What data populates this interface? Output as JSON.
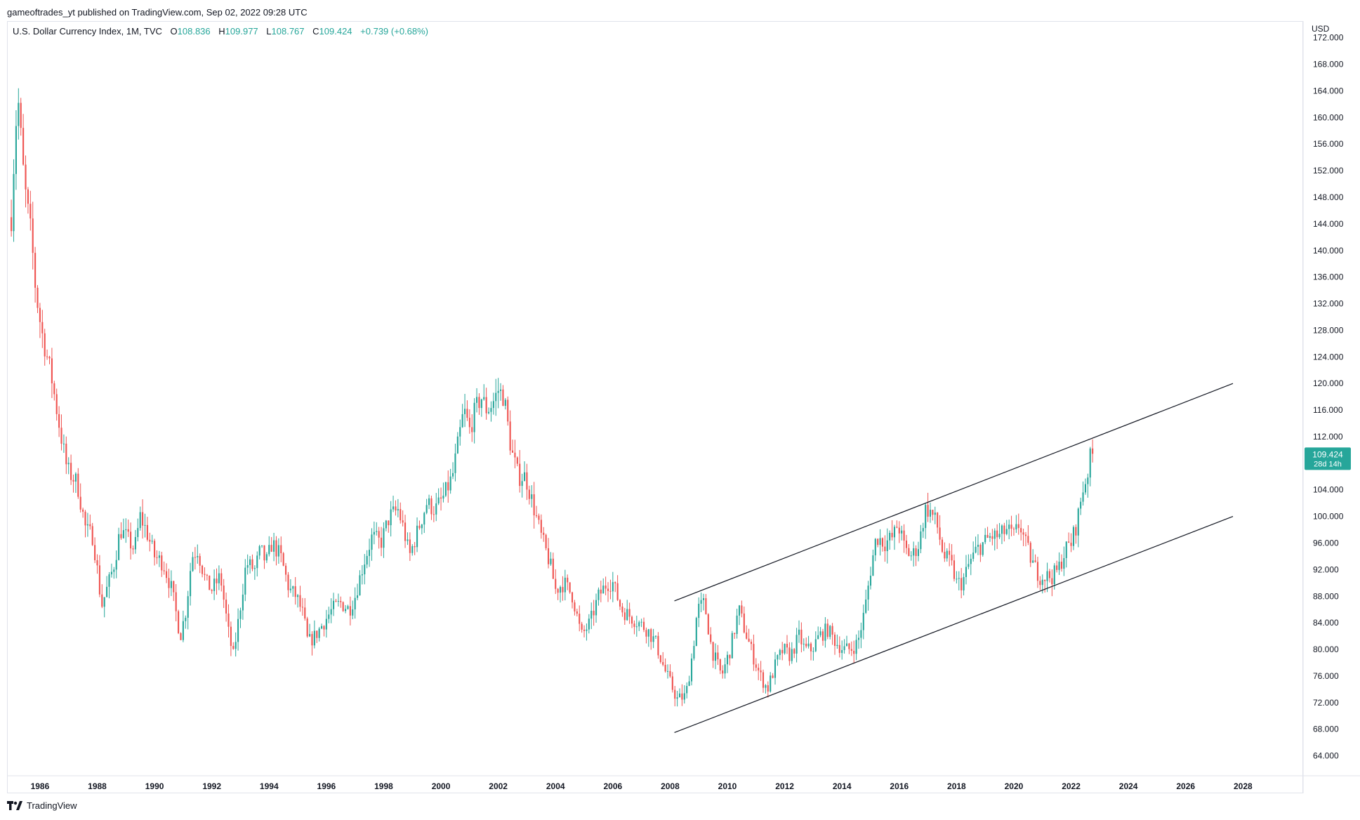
{
  "publisher": "gameoftrades_yt published on TradingView.com, Sep 02, 2022 09:28 UTC",
  "legend": {
    "symbol": "U.S. Dollar Currency Index, 1M, TVC",
    "o_label": "O",
    "o_value": "108.836",
    "h_label": "H",
    "h_value": "109.977",
    "l_label": "L",
    "l_value": "108.767",
    "c_label": "C",
    "c_value": "109.424",
    "change": "+0.739 (+0.68%)"
  },
  "footer": {
    "brand": "TradingView"
  },
  "colors": {
    "up": "#26a69a",
    "down": "#ef5350",
    "line": "#131722",
    "price_tag": "#26a69a"
  },
  "chart_data": {
    "type": "candlestick",
    "currency_label": "USD",
    "y_ticks": [
      "172.000",
      "168.000",
      "164.000",
      "160.000",
      "156.000",
      "152.000",
      "148.000",
      "144.000",
      "140.000",
      "136.000",
      "132.000",
      "128.000",
      "124.000",
      "120.000",
      "116.000",
      "112.000",
      "108.000",
      "104.000",
      "100.000",
      "96.000",
      "92.000",
      "88.000",
      "84.000",
      "80.000",
      "76.000",
      "72.000",
      "68.000",
      "64.000"
    ],
    "x_ticks": [
      "1986",
      "1988",
      "1990",
      "1992",
      "1994",
      "1996",
      "1998",
      "2000",
      "2002",
      "2004",
      "2006",
      "2008",
      "2010",
      "2012",
      "2014",
      "2016",
      "2018",
      "2020",
      "2022",
      "2024",
      "2026",
      "2028"
    ],
    "ylim": [
      61.0,
      174.5
    ],
    "xlim": [
      1984.85,
      2030.1
    ],
    "last_price": "109.424",
    "countdown": "28d 14h",
    "anchors": [
      [
        1985.0,
        145
      ],
      [
        1985.15,
        159
      ],
      [
        1985.25,
        162
      ],
      [
        1985.45,
        150
      ],
      [
        1985.7,
        142
      ],
      [
        1985.85,
        134
      ],
      [
        1986.05,
        128
      ],
      [
        1986.4,
        121
      ],
      [
        1986.7,
        113
      ],
      [
        1986.95,
        107
      ],
      [
        1987.3,
        105
      ],
      [
        1987.6,
        98
      ],
      [
        1987.85,
        97
      ],
      [
        1988.0,
        92
      ],
      [
        1988.15,
        86.5
      ],
      [
        1988.4,
        90
      ],
      [
        1988.6,
        93
      ],
      [
        1988.8,
        98
      ],
      [
        1989.0,
        97
      ],
      [
        1989.3,
        95
      ],
      [
        1989.5,
        100
      ],
      [
        1989.7,
        98
      ],
      [
        1990.0,
        94
      ],
      [
        1990.3,
        93
      ],
      [
        1990.6,
        89
      ],
      [
        1990.9,
        82
      ],
      [
        1991.1,
        86
      ],
      [
        1991.3,
        94
      ],
      [
        1991.5,
        95
      ],
      [
        1991.8,
        90
      ],
      [
        1992.0,
        89
      ],
      [
        1992.3,
        91
      ],
      [
        1992.6,
        82
      ],
      [
        1992.75,
        79
      ],
      [
        1992.95,
        85
      ],
      [
        1993.2,
        93
      ],
      [
        1993.5,
        92
      ],
      [
        1993.7,
        95
      ],
      [
        1993.9,
        93
      ],
      [
        1994.1,
        96
      ],
      [
        1994.4,
        94
      ],
      [
        1994.7,
        89
      ],
      [
        1994.95,
        88
      ],
      [
        1995.2,
        85
      ],
      [
        1995.35,
        81
      ],
      [
        1995.6,
        82
      ],
      [
        1995.9,
        84
      ],
      [
        1996.2,
        86
      ],
      [
        1996.5,
        87
      ],
      [
        1996.8,
        86
      ],
      [
        1997.0,
        88
      ],
      [
        1997.3,
        93
      ],
      [
        1997.6,
        97
      ],
      [
        1997.9,
        96
      ],
      [
        1998.2,
        100
      ],
      [
        1998.5,
        101
      ],
      [
        1998.7,
        98
      ],
      [
        1998.9,
        94
      ],
      [
        1999.2,
        98
      ],
      [
        1999.5,
        102
      ],
      [
        1999.8,
        101
      ],
      [
        2000.1,
        103
      ],
      [
        2000.4,
        106
      ],
      [
        2000.6,
        111
      ],
      [
        2000.8,
        116
      ],
      [
        2001.0,
        113
      ],
      [
        2001.2,
        116
      ],
      [
        2001.4,
        118
      ],
      [
        2001.6,
        116
      ],
      [
        2001.8,
        117
      ],
      [
        2002.0,
        119
      ],
      [
        2002.2,
        118
      ],
      [
        2002.45,
        110
      ],
      [
        2002.7,
        106
      ],
      [
        2002.95,
        106
      ],
      [
        2003.2,
        102
      ],
      [
        2003.5,
        97
      ],
      [
        2003.8,
        93
      ],
      [
        2004.0,
        89
      ],
      [
        2004.3,
        90
      ],
      [
        2004.6,
        88
      ],
      [
        2004.9,
        82
      ],
      [
        2005.2,
        84
      ],
      [
        2005.5,
        88
      ],
      [
        2005.8,
        90
      ],
      [
        2006.0,
        90
      ],
      [
        2006.3,
        86
      ],
      [
        2006.6,
        85
      ],
      [
        2006.9,
        84
      ],
      [
        2007.2,
        83
      ],
      [
        2007.5,
        81
      ],
      [
        2007.8,
        77
      ],
      [
        2008.0,
        75
      ],
      [
        2008.25,
        72.5
      ],
      [
        2008.55,
        73
      ],
      [
        2008.8,
        80
      ],
      [
        2008.95,
        86
      ],
      [
        2009.2,
        87
      ],
      [
        2009.45,
        80
      ],
      [
        2009.8,
        76
      ],
      [
        2010.1,
        80
      ],
      [
        2010.4,
        86
      ],
      [
        2010.6,
        83
      ],
      [
        2010.9,
        79
      ],
      [
        2011.15,
        76
      ],
      [
        2011.4,
        74
      ],
      [
        2011.7,
        78
      ],
      [
        2011.95,
        80
      ],
      [
        2012.2,
        79
      ],
      [
        2012.5,
        82
      ],
      [
        2012.7,
        80
      ],
      [
        2012.95,
        80
      ],
      [
        2013.2,
        82
      ],
      [
        2013.5,
        83
      ],
      [
        2013.8,
        81
      ],
      [
        2014.05,
        80
      ],
      [
        2014.3,
        80
      ],
      [
        2014.55,
        81
      ],
      [
        2014.8,
        86
      ],
      [
        2015.0,
        92
      ],
      [
        2015.2,
        97
      ],
      [
        2015.5,
        96
      ],
      [
        2015.8,
        97
      ],
      [
        2015.95,
        99
      ],
      [
        2016.2,
        95
      ],
      [
        2016.45,
        94
      ],
      [
        2016.7,
        96
      ],
      [
        2016.9,
        101
      ],
      [
        2017.05,
        101
      ],
      [
        2017.3,
        99
      ],
      [
        2017.55,
        94
      ],
      [
        2017.8,
        93
      ],
      [
        2018.0,
        90
      ],
      [
        2018.2,
        90
      ],
      [
        2018.45,
        93
      ],
      [
        2018.7,
        95
      ],
      [
        2018.95,
        96
      ],
      [
        2019.2,
        97
      ],
      [
        2019.5,
        97
      ],
      [
        2019.75,
        98
      ],
      [
        2020.0,
        97
      ],
      [
        2020.2,
        99
      ],
      [
        2020.4,
        96
      ],
      [
        2020.65,
        93
      ],
      [
        2020.9,
        91
      ],
      [
        2021.15,
        91
      ],
      [
        2021.35,
        91
      ],
      [
        2021.55,
        92
      ],
      [
        2021.8,
        95
      ],
      [
        2022.0,
        96
      ],
      [
        2022.2,
        99
      ],
      [
        2022.4,
        104
      ],
      [
        2022.55,
        106
      ],
      [
        2022.67,
        108.8
      ],
      [
        2022.75,
        109.4
      ]
    ],
    "channel": {
      "upper": {
        "x": [
          2008.15,
          2027.65
        ],
        "y": [
          87.3,
          120.0
        ]
      },
      "lower": {
        "x": [
          2008.15,
          2027.65
        ],
        "y": [
          67.5,
          100.0
        ]
      }
    }
  }
}
